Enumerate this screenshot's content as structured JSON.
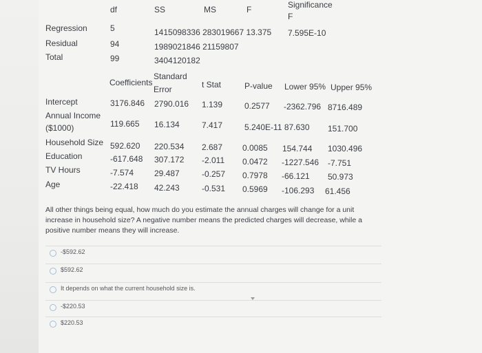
{
  "anova": {
    "headers": [
      "df",
      "SS",
      "MS",
      "F",
      "Significance",
      "F"
    ],
    "rows": [
      {
        "label": "Regression",
        "df": "5",
        "values": "1415098336 283019667 13.375",
        "sig": "7.595E-10"
      },
      {
        "label": "Residual",
        "df": "94",
        "values": "1989021846 21159807"
      },
      {
        "label": "Total",
        "df": "99",
        "values": "3404120182"
      }
    ]
  },
  "coef": {
    "headers": {
      "coefficients": "Coefficients",
      "se_line1": "Standard",
      "se_line2": "Error",
      "tstat": "t Stat",
      "pvalue": "P-value",
      "lower": "Lower 95%",
      "upper": "Upper 95%"
    },
    "rows": [
      {
        "label": "Intercept",
        "coef": "3176.846",
        "se": "2790.016",
        "t": "1.139",
        "p": "0.2577",
        "lower": "-2362.796",
        "upper": "8716.489"
      },
      {
        "label": "Annual Income",
        "label2": "($1000)",
        "coef": "119.665",
        "se": "16.134",
        "t": "7.417",
        "p": "5.240E-11 87.630",
        "upper": "151.700"
      },
      {
        "label": "Household Size",
        "coef": "592.620",
        "se": "220.534",
        "t": "2.687",
        "p": "0.0085",
        "lower": "154.744",
        "upper": "1030.496"
      },
      {
        "label": "Education",
        "coef": "-617.648",
        "se": "307.172",
        "t": "-2.011",
        "p": "0.0472",
        "lower": "-1227.546",
        "upper": "-7.751"
      },
      {
        "label": "TV Hours",
        "coef": "-7.574",
        "se": "29.487",
        "t": "-0.257",
        "p": "0.7978",
        "lower": "-66.121",
        "upper": "50.973"
      },
      {
        "label": "Age",
        "coef": "-22.418",
        "se": "42.243",
        "t": "-0.531",
        "p": "0.5969",
        "lower": "-106.293",
        "upper": "61.456"
      }
    ]
  },
  "question": "All other things being equal, how much do you estimate the annual charges will change for a unit increase in household size? A negative number means the predicted charges will decrease, while a positive number means they will increase.",
  "options": [
    "-$592.62",
    "$592.62",
    "It depends on what the current household size is.",
    "-$220.53",
    "$220.53"
  ]
}
